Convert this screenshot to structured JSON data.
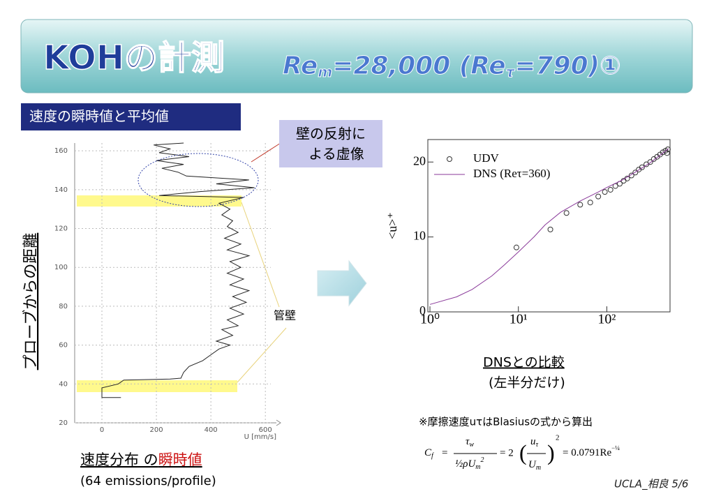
{
  "header": {
    "title": "KOHの計測",
    "formula": [
      "Re",
      "m",
      "=28,000 (",
      "Re",
      "τ",
      "=790)①"
    ]
  },
  "section_label": "速度の瞬時値と平均値",
  "callout": [
    "壁の反射に",
    "よる虚像"
  ],
  "wall_label": "管壁",
  "left_ylabel": "プローブからの距離",
  "left_caption": {
    "prefix": "速度分布 の",
    "highlight": "瞬時値",
    "note": "(64 emissions/profile)"
  },
  "right_caption": {
    "title": "DNSとの比較",
    "note": "(左半分だけ)"
  },
  "friction_note": "※摩擦速度uτはBlasiusの式から算出",
  "formula": {
    "lhs": "C",
    "lhs_sub": "f",
    "eq1": "=",
    "n1": "τ",
    "n1_sub": "w",
    "d1": "½ρU",
    "d1_sub": "m",
    "d1_sup": "2",
    "eq2": "= 2",
    "n2": "u",
    "n2_sub": "τ",
    "d2": "U",
    "d2_sub": "m",
    "power": "2",
    "rhs": "= 0.0791Re",
    "rhs_sup": "−¼"
  },
  "footer": "UCLA_相良  5/6",
  "chart_data": [
    {
      "type": "line",
      "xlabel": "U [mm/s]",
      "grid": true,
      "xlim": [
        -100,
        620
      ],
      "ylim": [
        20,
        164
      ],
      "xticks": [
        0,
        200,
        400,
        600
      ],
      "yticks": [
        20,
        40,
        60,
        80,
        100,
        120,
        140,
        160
      ],
      "x": [
        70,
        0,
        0,
        0,
        60,
        80,
        250,
        290,
        300,
        320,
        370,
        400,
        430,
        470,
        420,
        480,
        440,
        500,
        460,
        520,
        470,
        530,
        480,
        540,
        470,
        520,
        460,
        510,
        470,
        540,
        460,
        510,
        450,
        500,
        460,
        480,
        440,
        470,
        430,
        520,
        210,
        360,
        560,
        420,
        540,
        310,
        280,
        220,
        300,
        200,
        320,
        210,
        250,
        190,
        300
      ],
      "series": [
        {
          "color": "#222222",
          "values": [
            33,
            33,
            35,
            38,
            40,
            42,
            42.5,
            43,
            46,
            49,
            52,
            55,
            58,
            60,
            62,
            65,
            68,
            70,
            73,
            76,
            79,
            82,
            85,
            88,
            91,
            94,
            97,
            100,
            103,
            106,
            109,
            112,
            115,
            118,
            121,
            124,
            127,
            130,
            133,
            136,
            137,
            139,
            141,
            143,
            145,
            147,
            149,
            151,
            153,
            155,
            157,
            159,
            161,
            163,
            164
          ]
        }
      ]
    },
    {
      "type": "scatter",
      "ylabel": "<u>⁺",
      "log_x": true,
      "legend": "top-left",
      "xlim": [
        1,
        500
      ],
      "ylim": [
        0,
        23
      ],
      "xticks": [
        {
          "value": 1,
          "label": "10⁰"
        },
        {
          "value": 10,
          "label": "10¹"
        },
        {
          "value": 100,
          "label": "10²"
        }
      ],
      "yticks": [
        0,
        10,
        20
      ],
      "series": [
        {
          "name": "UDV",
          "color": "#333333",
          "marker": "circle",
          "x": [
            9.5,
            23,
            35,
            50,
            65,
            80,
            95,
            110,
            125,
            140,
            155,
            170,
            190,
            210,
            230,
            250,
            280,
            310,
            340,
            370,
            400,
            430,
            460,
            490,
            480
          ],
          "values": [
            8.6,
            11,
            13.2,
            14.3,
            14.6,
            15.4,
            16,
            16.3,
            16.8,
            17.1,
            17.5,
            17.8,
            18.2,
            18.6,
            19,
            19.3,
            19.7,
            20,
            20.4,
            20.7,
            21,
            21.3,
            21.5,
            21.7,
            21.2
          ]
        },
        {
          "name": "DNS (Reτ=360)",
          "color": "#8a3a9a",
          "marker": "line",
          "x": [
            1,
            2,
            3,
            5,
            7,
            10,
            15,
            20,
            30,
            50,
            80,
            100,
            150,
            200,
            300,
            400,
            500
          ],
          "values": [
            1,
            2,
            3,
            4.8,
            6.3,
            8,
            10,
            11.6,
            13.3,
            14.8,
            16,
            16.6,
            17.6,
            18.5,
            19.8,
            20.9,
            21.8
          ]
        }
      ]
    }
  ]
}
